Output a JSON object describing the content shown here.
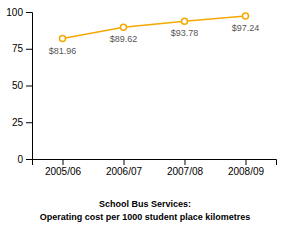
{
  "chart_data": {
    "type": "line",
    "title": "School Bus Services:",
    "subtitle": "Operating cost per 1000 student place kilometres",
    "categories": [
      "2005/06",
      "2006/07",
      "2007/08",
      "2008/09"
    ],
    "values": [
      81.96,
      89.62,
      93.78,
      97.24
    ],
    "value_labels": [
      "$81.96",
      "$89.62",
      "$93.78",
      "$97.24"
    ],
    "data_labels": true,
    "color": "#F5A800",
    "marker": "circle",
    "ylim": [
      0,
      100
    ],
    "yticks": [
      0,
      25,
      50,
      75,
      100
    ],
    "grid": false
  }
}
